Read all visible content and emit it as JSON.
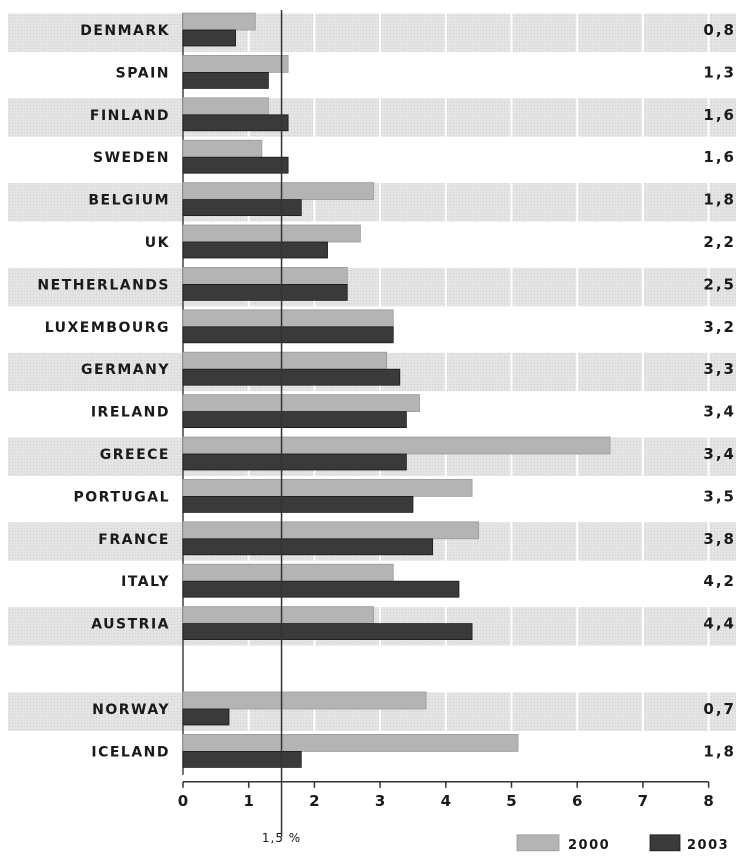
{
  "chart_data": {
    "type": "bar",
    "title": "",
    "xlabel": "",
    "ylabel": "",
    "xlim": [
      0,
      8
    ],
    "x_ticks": [
      "0",
      "1",
      "2",
      "3",
      "4",
      "5",
      "6",
      "7",
      "8"
    ],
    "orientation": "horizontal",
    "grid": true,
    "reference_line": {
      "value": 1.5,
      "label": "1,5 %"
    },
    "groups": [
      {
        "categories": [
          "Denmark",
          "Spain",
          "Finland",
          "Sweden",
          "Belgium",
          "UK",
          "Netherlands",
          "Luxembourg",
          "Germany",
          "Ireland",
          "Greece",
          "Portugal",
          "France",
          "Italy",
          "Austria"
        ],
        "value_labels": [
          "0,8",
          "1,3",
          "1,6",
          "1,6",
          "1,8",
          "2,2",
          "2,5",
          "3,2",
          "3,3",
          "3,4",
          "3,4",
          "3,5",
          "3,8",
          "4,2",
          "4,4"
        ]
      },
      {
        "categories": [
          "Norway",
          "Iceland"
        ],
        "value_labels": [
          "0,7",
          "1,8"
        ]
      }
    ],
    "series": [
      {
        "name": "2000",
        "color": "#b4b4b4",
        "values": [
          1.1,
          1.6,
          1.3,
          1.2,
          2.9,
          2.7,
          2.5,
          3.2,
          3.1,
          3.6,
          6.5,
          4.4,
          4.5,
          3.2,
          2.9,
          3.7,
          5.1
        ]
      },
      {
        "name": "2003",
        "color": "#3a3a3a",
        "values": [
          0.8,
          1.3,
          1.6,
          1.6,
          1.8,
          2.2,
          2.5,
          3.2,
          3.3,
          3.4,
          3.4,
          3.5,
          3.8,
          4.2,
          4.4,
          0.7,
          1.8
        ]
      }
    ],
    "legend": {
      "placement": "bottom-right"
    }
  }
}
